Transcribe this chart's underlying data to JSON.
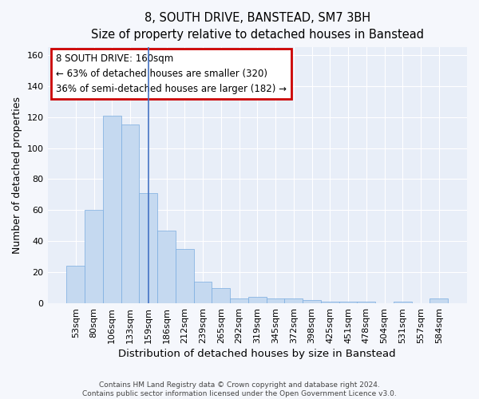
{
  "title": "8, SOUTH DRIVE, BANSTEAD, SM7 3BH",
  "subtitle": "Size of property relative to detached houses in Banstead",
  "xlabel": "Distribution of detached houses by size in Banstead",
  "ylabel": "Number of detached properties",
  "bar_labels": [
    "53sqm",
    "80sqm",
    "106sqm",
    "133sqm",
    "159sqm",
    "186sqm",
    "212sqm",
    "239sqm",
    "265sqm",
    "292sqm",
    "319sqm",
    "345sqm",
    "372sqm",
    "398sqm",
    "425sqm",
    "451sqm",
    "478sqm",
    "504sqm",
    "531sqm",
    "557sqm",
    "584sqm"
  ],
  "bar_values": [
    24,
    60,
    121,
    115,
    71,
    47,
    35,
    14,
    10,
    3,
    4,
    3,
    3,
    2,
    1,
    1,
    1,
    0,
    1,
    0,
    3
  ],
  "bar_color": "#c5d9f0",
  "bar_edge_color": "#7aace0",
  "marker_bar_index": 4,
  "marker_line_color": "#4472c4",
  "annotation_text": "8 SOUTH DRIVE: 160sqm\n← 63% of detached houses are smaller (320)\n36% of semi-detached houses are larger (182) →",
  "annotation_box_color": "#ffffff",
  "annotation_box_edge_color": "#cc0000",
  "ylim": [
    0,
    165
  ],
  "yticks": [
    0,
    20,
    40,
    60,
    80,
    100,
    120,
    140,
    160
  ],
  "plot_bg_color": "#e8eef8",
  "fig_bg_color": "#f5f7fc",
  "grid_color": "#ffffff",
  "footer_line1": "Contains HM Land Registry data © Crown copyright and database right 2024.",
  "footer_line2": "Contains public sector information licensed under the Open Government Licence v3.0."
}
